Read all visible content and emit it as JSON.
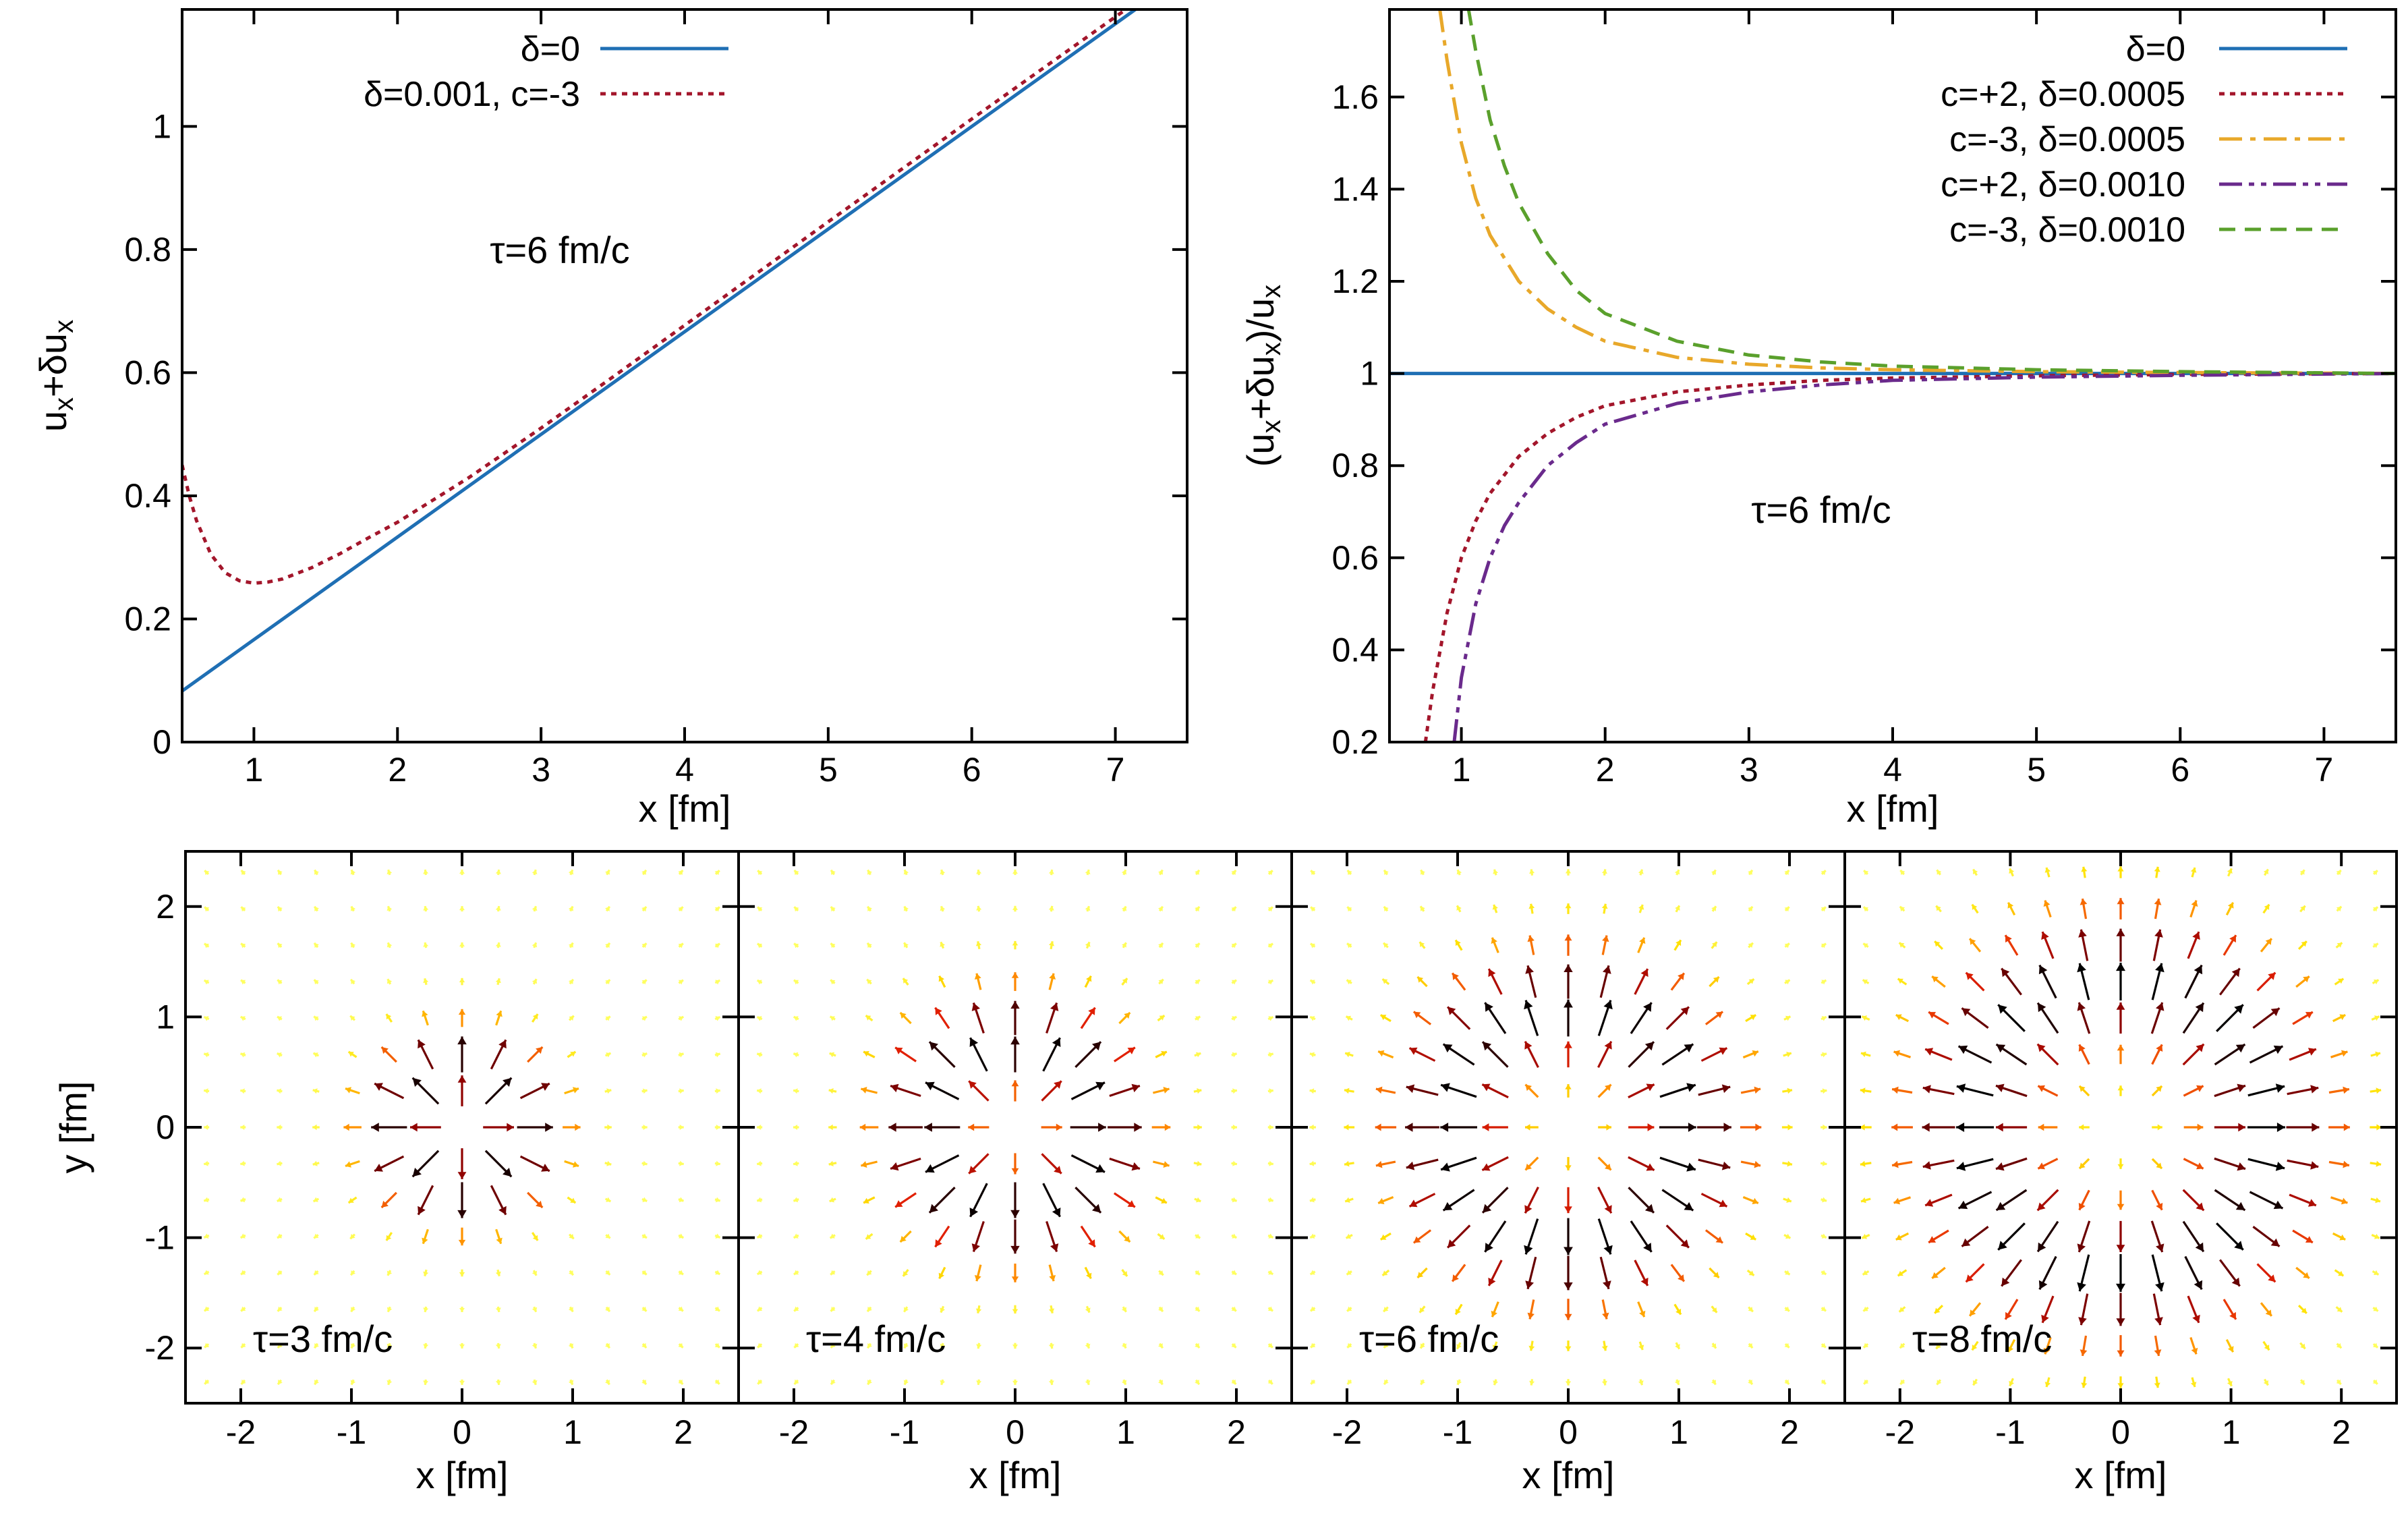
{
  "chart_data": [
    {
      "id": "top-left",
      "type": "line",
      "xlabel": "x [fm]",
      "ylabel_parts": [
        "u",
        "x",
        "+δu",
        "x"
      ],
      "xlim": [
        0.5,
        7.5
      ],
      "ylim": [
        0,
        1.19
      ],
      "xticks": [
        1,
        2,
        3,
        4,
        5,
        6,
        7
      ],
      "yticks": [
        0,
        0.2,
        0.4,
        0.6,
        0.8,
        1
      ],
      "yticklabels": [
        "0",
        "0.2",
        "0.4",
        "0.6",
        "0.8",
        "1"
      ],
      "annotation": "τ=6 fm/c",
      "legend_position": "top-center",
      "series": [
        {
          "name": "δ=0",
          "color": "#1f6fb4",
          "dash": "solid",
          "x": [
            0.5,
            7.5
          ],
          "y": [
            0.083,
            1.25
          ]
        },
        {
          "name": "δ=0.001, c=-3",
          "color": "#a3162b",
          "dash": "dotted",
          "x": [
            0.5,
            0.55,
            0.6,
            0.7,
            0.8,
            0.9,
            1.0,
            1.1,
            1.2,
            1.4,
            1.6,
            1.8,
            2.0,
            2.5,
            3.0,
            3.5,
            4.0,
            5.0,
            6.0,
            7.0,
            7.5
          ],
          "y": [
            0.45,
            0.4,
            0.36,
            0.305,
            0.275,
            0.262,
            0.258,
            0.26,
            0.265,
            0.283,
            0.306,
            0.332,
            0.357,
            0.43,
            0.51,
            0.593,
            0.677,
            0.845,
            1.012,
            1.178,
            1.26
          ]
        }
      ]
    },
    {
      "id": "top-right",
      "type": "line",
      "xlabel": "x [fm]",
      "ylabel_parts": [
        "(u",
        "x",
        "+δu",
        "x",
        ")/u",
        "x"
      ],
      "xlim": [
        0.5,
        7.5
      ],
      "ylim": [
        0.2,
        1.79
      ],
      "xticks": [
        1,
        2,
        3,
        4,
        5,
        6,
        7
      ],
      "yticks": [
        0.2,
        0.4,
        0.6,
        0.8,
        1,
        1.2,
        1.4,
        1.6
      ],
      "yticklabels": [
        "0.2",
        "0.4",
        "0.6",
        "0.8",
        "1",
        "1.2",
        "1.4",
        "1.6"
      ],
      "annotation": "τ=6 fm/c",
      "legend_position": "top-right",
      "series": [
        {
          "name": "δ=0",
          "color": "#1f6fb4",
          "dash": "solid",
          "x": [
            0.5,
            7.5
          ],
          "y": [
            1.0,
            1.0
          ]
        },
        {
          "name": "c=+2, δ=0.0005",
          "color": "#a3162b",
          "dash": "dotted",
          "x": [
            0.75,
            0.8,
            0.9,
            1.0,
            1.1,
            1.2,
            1.4,
            1.6,
            1.8,
            2.0,
            2.5,
            3.0,
            3.5,
            4.0,
            5.0,
            6.0,
            7.5
          ],
          "y": [
            0.2,
            0.31,
            0.48,
            0.6,
            0.68,
            0.74,
            0.82,
            0.87,
            0.905,
            0.93,
            0.96,
            0.975,
            0.985,
            0.99,
            0.995,
            0.998,
            1.0
          ]
        },
        {
          "name": "c=-3, δ=0.0005",
          "color": "#e8a82a",
          "dash": "dashdot",
          "x": [
            0.85,
            0.9,
            1.0,
            1.1,
            1.2,
            1.4,
            1.6,
            1.8,
            2.0,
            2.5,
            3.0,
            3.5,
            4.0,
            5.0,
            6.0,
            7.5
          ],
          "y": [
            1.79,
            1.68,
            1.5,
            1.38,
            1.3,
            1.2,
            1.14,
            1.1,
            1.07,
            1.035,
            1.02,
            1.012,
            1.008,
            1.004,
            1.002,
            1.0
          ]
        },
        {
          "name": "c=+2, δ=0.0010",
          "color": "#6a2a8c",
          "dash": "dashdotdot",
          "x": [
            0.95,
            1.0,
            1.1,
            1.2,
            1.3,
            1.4,
            1.6,
            1.8,
            2.0,
            2.5,
            3.0,
            3.5,
            4.0,
            5.0,
            6.0,
            7.5
          ],
          "y": [
            0.2,
            0.34,
            0.5,
            0.6,
            0.67,
            0.72,
            0.8,
            0.85,
            0.89,
            0.935,
            0.96,
            0.975,
            0.985,
            0.992,
            0.996,
            1.0
          ]
        },
        {
          "name": "c=-3, δ=0.0010",
          "color": "#5aa02c",
          "dash": "dashed",
          "x": [
            1.05,
            1.1,
            1.2,
            1.3,
            1.4,
            1.6,
            1.8,
            2.0,
            2.5,
            3.0,
            3.5,
            4.0,
            5.0,
            6.0,
            7.5
          ],
          "y": [
            1.79,
            1.7,
            1.55,
            1.45,
            1.37,
            1.26,
            1.18,
            1.13,
            1.07,
            1.04,
            1.025,
            1.016,
            1.008,
            1.004,
            1.0
          ]
        }
      ]
    },
    {
      "id": "vector-field-panels",
      "type": "vector-field",
      "xlabel": "x [fm]",
      "ylabel": "y [fm]",
      "xlim": [
        -2.5,
        2.5
      ],
      "ylim": [
        -2.5,
        2.5
      ],
      "xticks": [
        -2,
        -1,
        0,
        1,
        2
      ],
      "yticks": [
        -2,
        -1,
        0,
        1,
        2
      ],
      "grid_spacing": 0.33,
      "colormap": [
        "#000000",
        "#8b0000",
        "#e32000",
        "#ff8c00",
        "#ffe000",
        "#ffff60"
      ],
      "panels": [
        {
          "tau": 3,
          "annotation": "τ=3 fm/c",
          "peak_radius": 0.55,
          "width": 0.45
        },
        {
          "tau": 4,
          "annotation": "τ=4 fm/c",
          "peak_radius": 0.8,
          "width": 0.55
        },
        {
          "tau": 6,
          "annotation": "τ=6 fm/c",
          "peak_radius": 1.1,
          "width": 0.65
        },
        {
          "tau": 8,
          "annotation": "τ=8 fm/c",
          "peak_radius": 1.35,
          "width": 0.75
        }
      ]
    }
  ]
}
